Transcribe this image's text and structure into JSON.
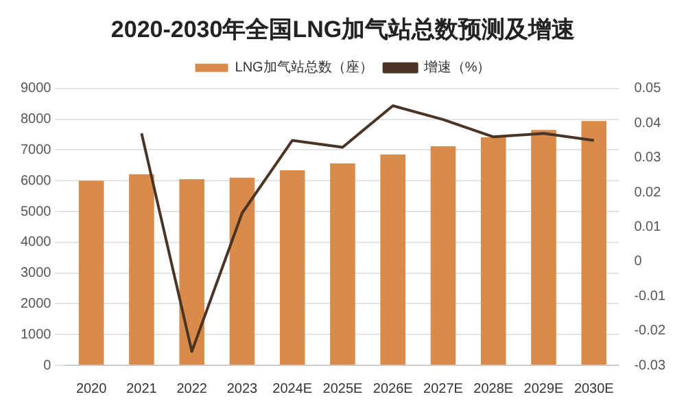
{
  "chart_data": {
    "type": "bar",
    "title": "2020-2030年全国LNG加气站总数预测及增速",
    "categories": [
      "2020",
      "2021",
      "2022",
      "2023",
      "2024E",
      "2025E",
      "2026E",
      "2027E",
      "2028E",
      "2029E",
      "2030E"
    ],
    "series": [
      {
        "name": "LNG加气站总数（座）",
        "color": "#d98c4a",
        "values": [
          6000,
          6210,
          6050,
          6100,
          6340,
          6560,
          6850,
          7120,
          7410,
          7650,
          7940
        ]
      },
      {
        "name": "增速（%）",
        "type": "line",
        "axis": "y2",
        "color": "#4a3426",
        "values": [
          null,
          0.037,
          -0.026,
          0.014,
          0.035,
          0.033,
          0.045,
          0.041,
          0.036,
          0.037,
          0.035
        ]
      }
    ],
    "ylim": [
      0,
      9000
    ],
    "yticks": [
      0,
      1000,
      2000,
      3000,
      4000,
      5000,
      6000,
      7000,
      8000,
      9000
    ],
    "y2lim": [
      -0.03,
      0.05
    ],
    "y2ticks": [
      -0.03,
      -0.02,
      -0.01,
      0,
      0.01,
      0.02,
      0.03,
      0.04,
      0.05
    ],
    "grid": "y",
    "legend": "top",
    "marker": "none",
    "line_style": "solid"
  }
}
